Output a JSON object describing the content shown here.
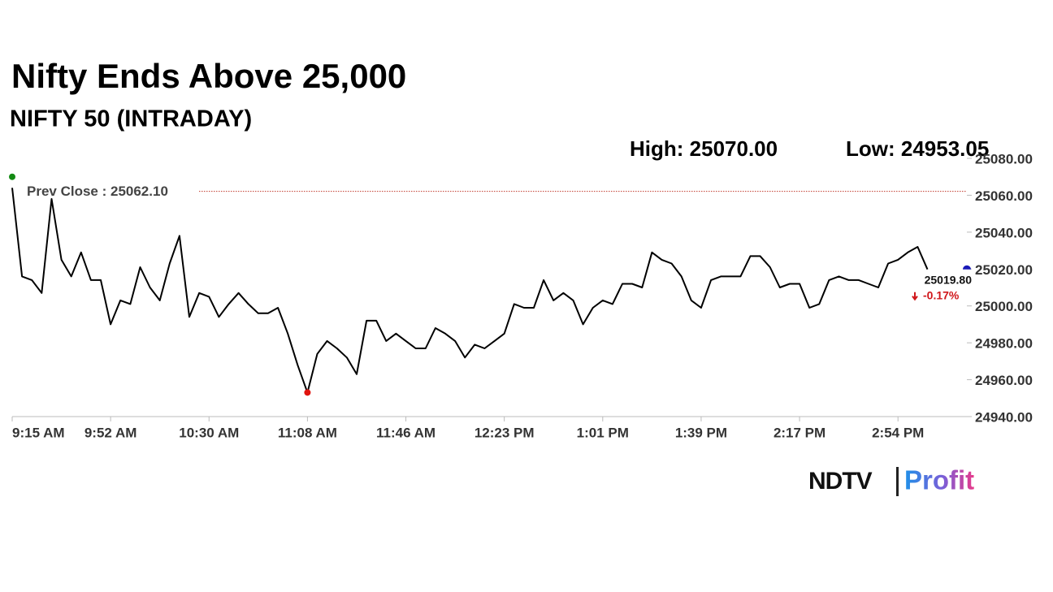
{
  "chart_data": {
    "type": "line",
    "title": "Nifty Ends Above 25,000",
    "subtitle": "NIFTY 50 (INTRADAY)",
    "high": {
      "value": 25070,
      "label": "High: 25070.00",
      "color": "#138a13"
    },
    "low": {
      "value": 24953.05,
      "label": "Low: 24953.05",
      "color": "#e0140f"
    },
    "prev_close": {
      "value": 25062.1,
      "label": "Prev Close : 25062.10",
      "color": "#c0392b"
    },
    "last": {
      "value": 25019.8,
      "label": "25019.80",
      "color": "#1a1ab8"
    },
    "change": {
      "value": -0.17,
      "label": "-0.17%",
      "color": "#d0161a"
    },
    "color": "#000000",
    "categories": [
      "9:15 AM",
      null,
      null,
      null,
      null,
      null,
      null,
      null,
      null,
      null,
      "9:52 AM",
      null,
      null,
      null,
      null,
      null,
      null,
      null,
      null,
      null,
      "10:30 AM",
      null,
      null,
      null,
      null,
      null,
      null,
      null,
      null,
      null,
      "11:08 AM",
      null,
      null,
      null,
      null,
      null,
      null,
      null,
      null,
      null,
      "11:46 AM",
      null,
      null,
      null,
      null,
      null,
      null,
      null,
      null,
      null,
      "12:23 PM",
      null,
      null,
      null,
      null,
      null,
      null,
      null,
      null,
      null,
      "1:01 PM",
      null,
      null,
      null,
      null,
      null,
      null,
      null,
      null,
      null,
      "1:39 PM",
      null,
      null,
      null,
      null,
      null,
      null,
      null,
      null,
      null,
      "2:17 PM",
      null,
      null,
      null,
      null,
      null,
      null,
      null,
      null,
      null,
      "2:54 PM",
      null,
      null,
      null,
      null,
      null,
      null
    ],
    "values": [
      25064,
      25016,
      25014,
      25007,
      25058,
      25025,
      25016,
      25029,
      25014,
      25014,
      24990,
      25003,
      25001,
      25021,
      25010,
      25003,
      25023,
      25038,
      24994,
      25007,
      25005,
      24994,
      25001,
      25007,
      25001,
      24996,
      24996,
      24999,
      24985,
      24968,
      24953.05,
      24974,
      24981,
      24977,
      24972,
      24963,
      24992,
      24992,
      24981,
      24985,
      24981,
      24977,
      24977,
      24988,
      24985,
      24981,
      24972,
      24979,
      24977,
      24981,
      24985,
      25001,
      24999,
      24999,
      25014,
      25003,
      25007,
      25003,
      24990,
      24999,
      25003,
      25001,
      25012,
      25012,
      25010,
      25029,
      25025,
      25023,
      25016,
      25003,
      24999,
      25014,
      25016,
      25016,
      25016,
      25027,
      25027,
      25021,
      25010,
      25012,
      25012,
      24999,
      25001,
      25014,
      25016,
      25014,
      25014,
      25012,
      25010,
      25023,
      25025,
      25029,
      25032,
      25019.8,
      null,
      null,
      null
    ],
    "ylim": [
      24940,
      25080
    ],
    "yticks": [
      {
        "value": 24940,
        "label": "24940.00"
      },
      {
        "value": 24960,
        "label": "24960.00"
      },
      {
        "value": 24980,
        "label": "24980.00"
      },
      {
        "value": 25000,
        "label": "25000.00"
      },
      {
        "value": 25020,
        "label": "25020.00"
      },
      {
        "value": 25040,
        "label": "25040.00"
      },
      {
        "value": 25060,
        "label": "25060.00"
      },
      {
        "value": 25080,
        "label": "25080.00"
      }
    ]
  },
  "logo": {
    "left": "NDTV",
    "right": "Profit"
  }
}
